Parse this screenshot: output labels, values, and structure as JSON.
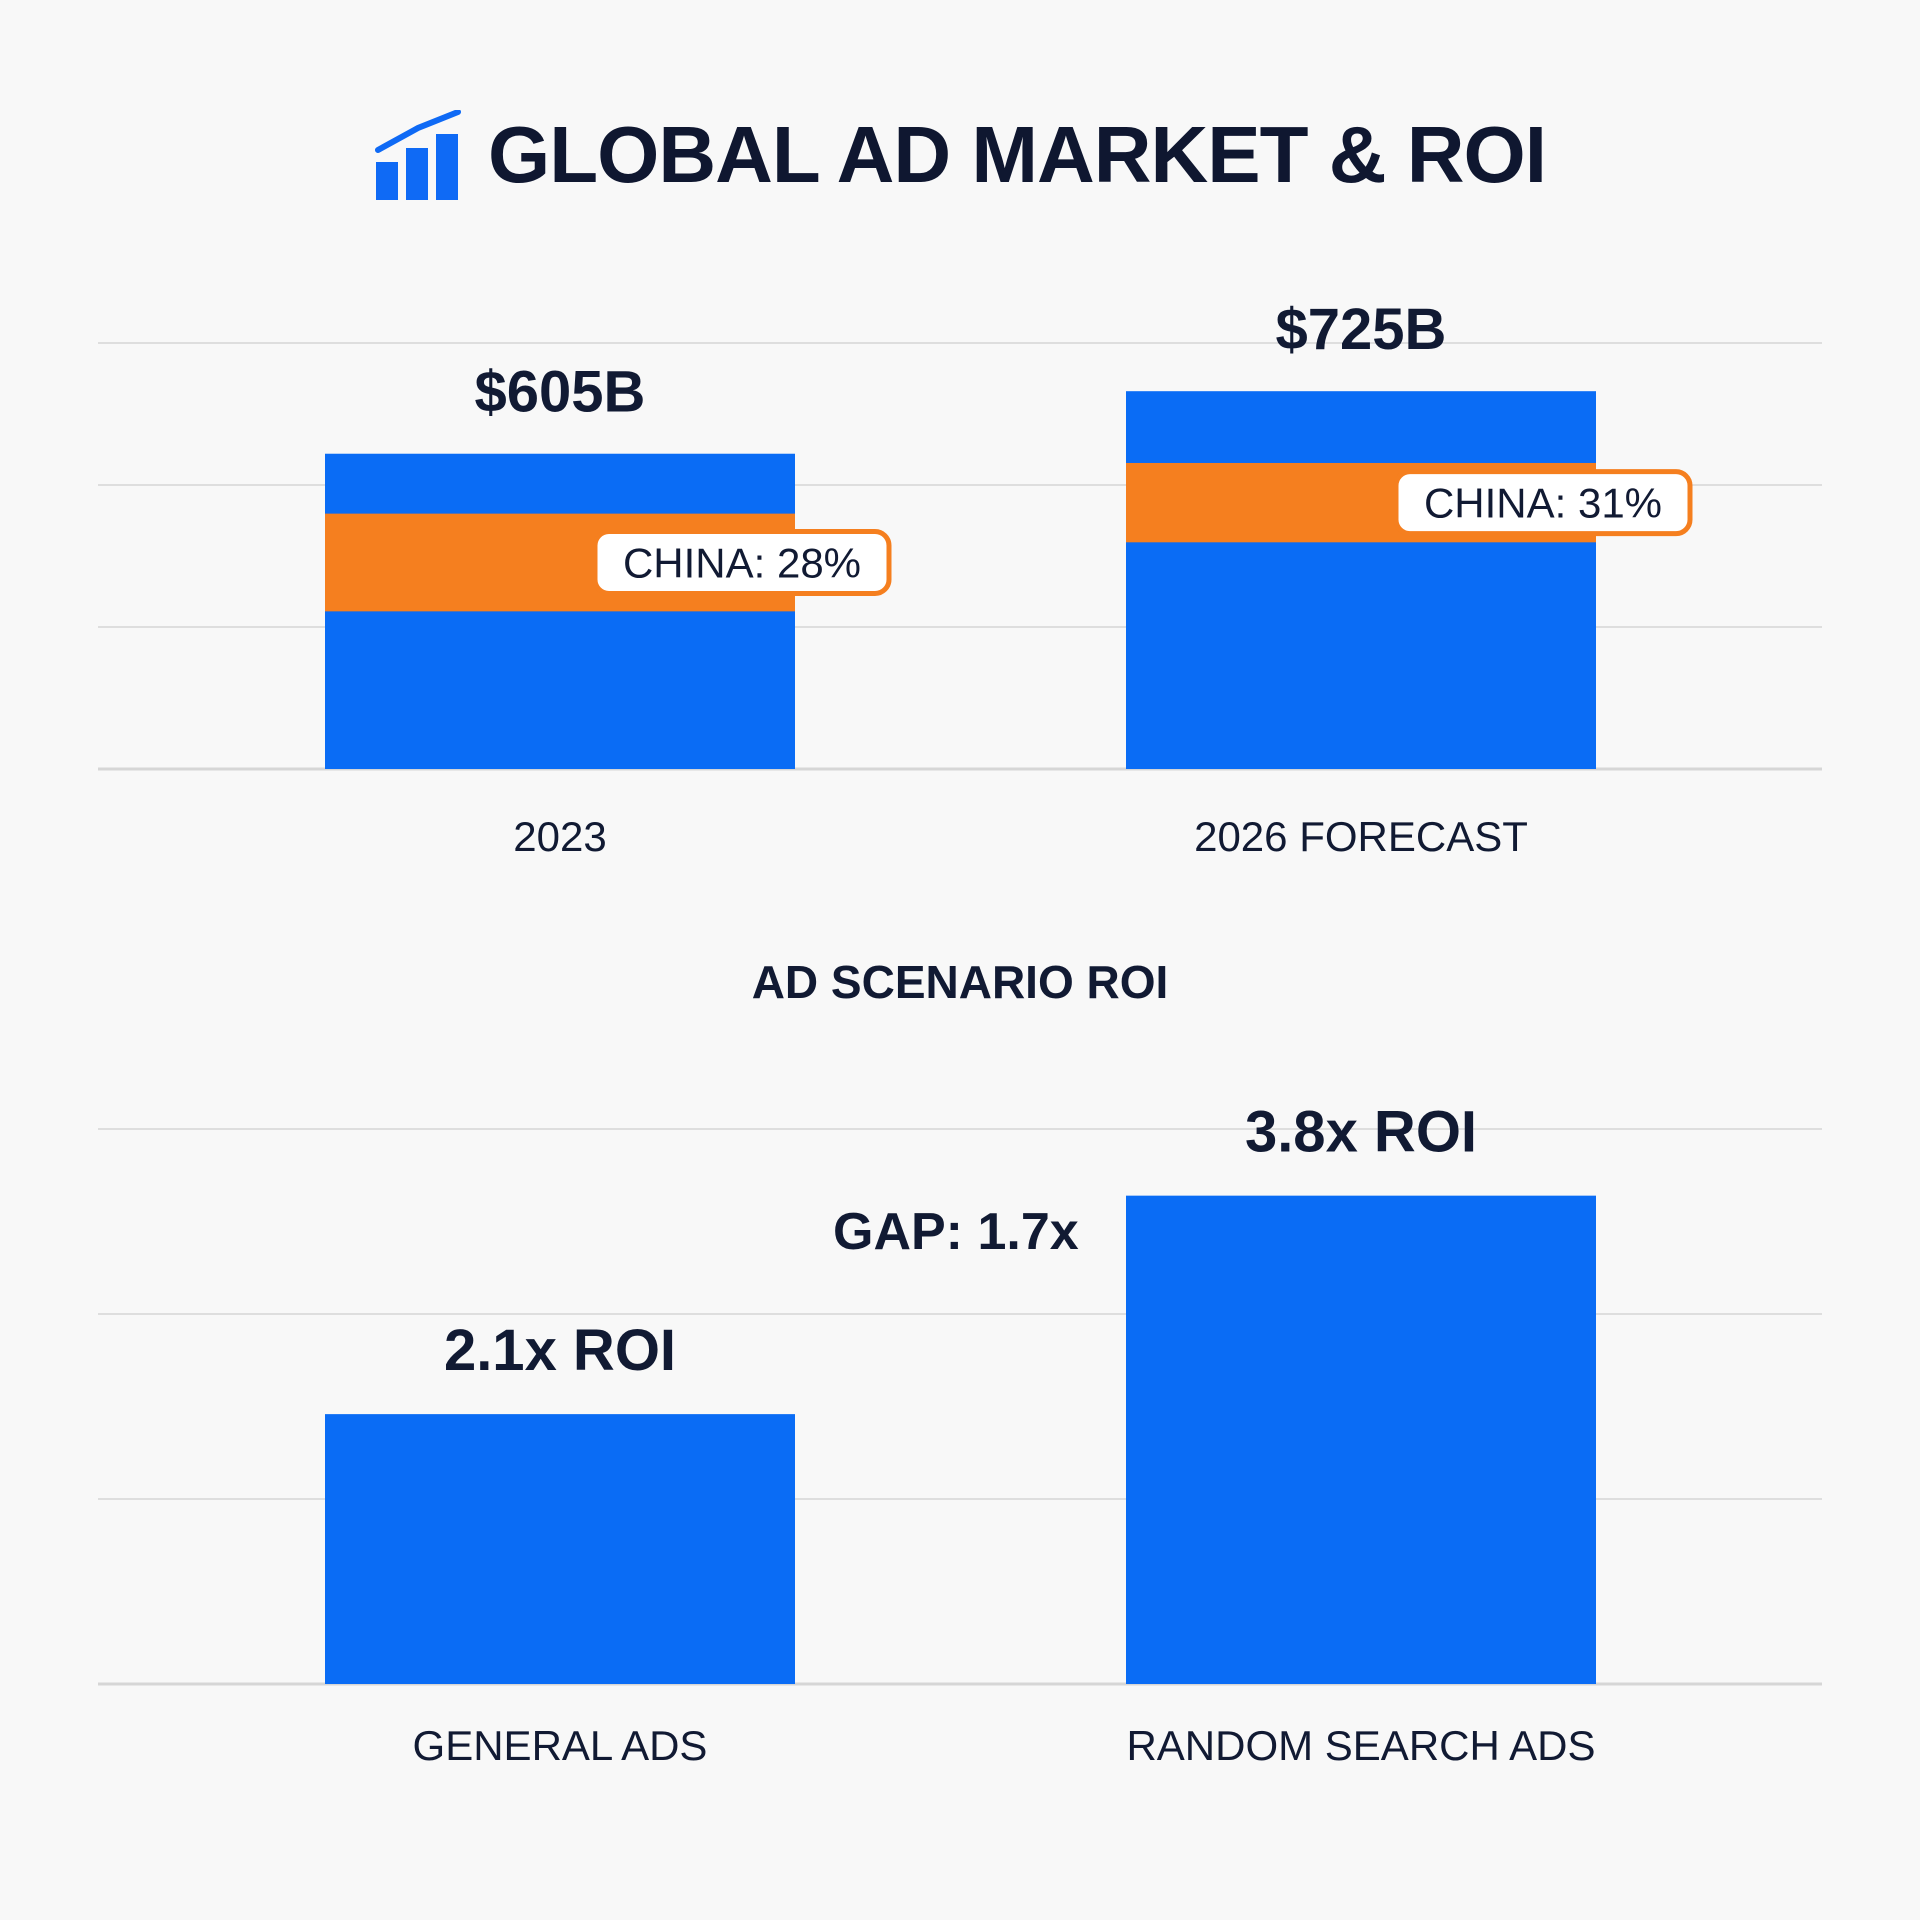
{
  "header": {
    "title": "GLOBAL AD MARKET & ROI",
    "icon": "bar-chart-trend-icon",
    "icon_color": "#0f6af5"
  },
  "section_title": "AD SCENARIO ROI",
  "gap_label": "GAP: 1.7x",
  "colors": {
    "bar": "#0a6cf5",
    "china_band": "#f57f1f",
    "grid": "#d6d6d6",
    "text": "#111a33"
  },
  "chart_data": [
    {
      "type": "bar",
      "title": "",
      "categories": [
        "2023",
        "2026 FORECAST"
      ],
      "values": [
        605,
        725
      ],
      "value_labels": [
        "$605B",
        "$725B"
      ],
      "unit": "B USD",
      "segments": {
        "name": "China share",
        "values": [
          28,
          31
        ],
        "callouts": [
          "CHINA: 28%",
          "CHINA: 31%"
        ]
      },
      "ylim": [
        0,
        900
      ],
      "grid": true
    },
    {
      "type": "bar",
      "title": "AD SCENARIO ROI",
      "categories": [
        "GENERAL ADS",
        "RANDOM SEARCH ADS"
      ],
      "values": [
        2.1,
        3.8
      ],
      "value_labels": [
        "2.1x ROI",
        "3.8x ROI"
      ],
      "annotation": "GAP: 1.7x",
      "ylim": [
        0,
        4.7
      ],
      "grid": true
    }
  ]
}
